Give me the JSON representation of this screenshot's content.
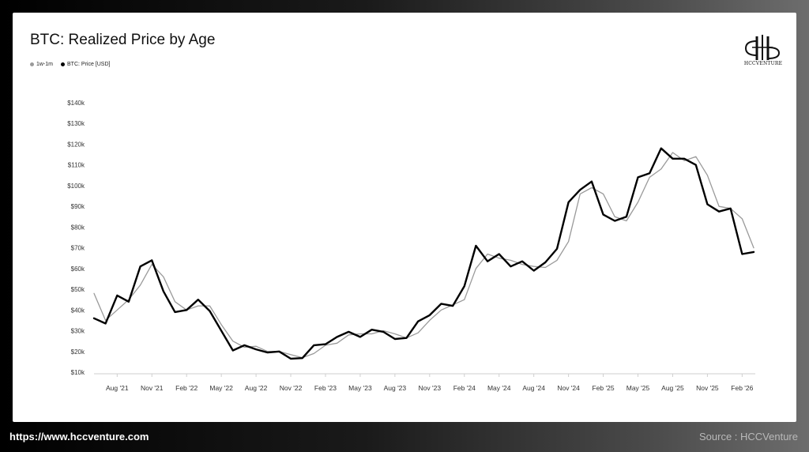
{
  "footer": {
    "url": "https://www.hccventure.com",
    "source": "Source : HCCVenture"
  },
  "logo": {
    "text": "HCCVENTURE"
  },
  "chart_data": {
    "type": "line",
    "title": "BTC: Realized Price by Age",
    "xlabel": "",
    "ylabel": "",
    "ylim": [
      10000,
      140000
    ],
    "grid": false,
    "legend_position": "top-left",
    "y_ticks": [
      {
        "value": 10000,
        "label": "$10k"
      },
      {
        "value": 20000,
        "label": "$20k"
      },
      {
        "value": 30000,
        "label": "$30k"
      },
      {
        "value": 40000,
        "label": "$40k"
      },
      {
        "value": 50000,
        "label": "$50k"
      },
      {
        "value": 60000,
        "label": "$60k"
      },
      {
        "value": 70000,
        "label": "$70k"
      },
      {
        "value": 80000,
        "label": "$80k"
      },
      {
        "value": 90000,
        "label": "$90k"
      },
      {
        "value": 100000,
        "label": "$100k"
      },
      {
        "value": 110000,
        "label": "$110k"
      },
      {
        "value": 120000,
        "label": "$120k"
      },
      {
        "value": 130000,
        "label": "$130k"
      },
      {
        "value": 140000,
        "label": "$140k"
      }
    ],
    "x_ticks": [
      {
        "date": "2021-08",
        "label": "Aug '21"
      },
      {
        "date": "2021-11",
        "label": "Nov '21"
      },
      {
        "date": "2022-02",
        "label": "Feb '22"
      },
      {
        "date": "2022-05",
        "label": "May '22"
      },
      {
        "date": "2022-08",
        "label": "Aug '22"
      },
      {
        "date": "2022-11",
        "label": "Nov '22"
      },
      {
        "date": "2023-02",
        "label": "Feb '23"
      },
      {
        "date": "2023-05",
        "label": "May '23"
      },
      {
        "date": "2023-08",
        "label": "Aug '23"
      },
      {
        "date": "2023-11",
        "label": "Nov '23"
      },
      {
        "date": "2024-02",
        "label": "Feb '24"
      },
      {
        "date": "2024-05",
        "label": "May '24"
      },
      {
        "date": "2024-08",
        "label": "Aug '24"
      },
      {
        "date": "2024-11",
        "label": "Nov '24"
      },
      {
        "date": "2025-02",
        "label": "Feb '25"
      },
      {
        "date": "2025-05",
        "label": "May '25"
      },
      {
        "date": "2025-08",
        "label": "Aug '25"
      },
      {
        "date": "2025-11",
        "label": "Nov '25"
      },
      {
        "date": "2026-02",
        "label": "Feb '26"
      }
    ],
    "x_range": [
      "2021-06",
      "2026-03"
    ],
    "series": [
      {
        "name": "BTC: Price [USD]",
        "color": "#000000",
        "x": [
          "2021-06",
          "2021-07",
          "2021-08",
          "2021-09",
          "2021-10",
          "2021-11",
          "2021-12",
          "2022-01",
          "2022-02",
          "2022-03",
          "2022-04",
          "2022-05",
          "2022-06",
          "2022-07",
          "2022-08",
          "2022-09",
          "2022-10",
          "2022-11",
          "2022-12",
          "2023-01",
          "2023-02",
          "2023-03",
          "2023-04",
          "2023-05",
          "2023-06",
          "2023-07",
          "2023-08",
          "2023-09",
          "2023-10",
          "2023-11",
          "2023-12",
          "2024-01",
          "2024-02",
          "2024-03",
          "2024-04",
          "2024-05",
          "2024-06",
          "2024-07",
          "2024-08",
          "2024-09",
          "2024-10",
          "2024-11",
          "2024-12",
          "2025-01",
          "2025-02",
          "2025-03",
          "2025-04",
          "2025-05",
          "2025-06",
          "2025-07",
          "2025-08",
          "2025-09",
          "2025-10",
          "2025-11",
          "2025-12",
          "2026-01",
          "2026-02",
          "2026-03"
        ],
        "values": [
          36000,
          33500,
          47000,
          44000,
          61000,
          64000,
          49000,
          39000,
          40000,
          45000,
          39500,
          30000,
          20500,
          23000,
          21000,
          19500,
          20000,
          16500,
          16800,
          23000,
          23500,
          27000,
          29500,
          27000,
          30500,
          29500,
          26000,
          26500,
          34500,
          37500,
          43000,
          42000,
          51500,
          71000,
          63500,
          67000,
          61000,
          63500,
          59000,
          63000,
          69500,
          92000,
          98000,
          102000,
          86000,
          83000,
          85000,
          104000,
          106000,
          118000,
          113000,
          113000,
          110000,
          91000,
          87500,
          89000,
          67000,
          68000
        ]
      },
      {
        "name": "1w-1m",
        "color": "#9a9a9a",
        "x": [
          "2021-06",
          "2021-07",
          "2021-08",
          "2021-09",
          "2021-10",
          "2021-11",
          "2021-12",
          "2022-01",
          "2022-02",
          "2022-03",
          "2022-04",
          "2022-05",
          "2022-06",
          "2022-07",
          "2022-08",
          "2022-09",
          "2022-10",
          "2022-11",
          "2022-12",
          "2023-01",
          "2023-02",
          "2023-03",
          "2023-04",
          "2023-05",
          "2023-06",
          "2023-07",
          "2023-08",
          "2023-09",
          "2023-10",
          "2023-11",
          "2023-12",
          "2024-01",
          "2024-02",
          "2024-03",
          "2024-04",
          "2024-05",
          "2024-06",
          "2024-07",
          "2024-08",
          "2024-09",
          "2024-10",
          "2024-11",
          "2024-12",
          "2025-01",
          "2025-02",
          "2025-03",
          "2025-04",
          "2025-05",
          "2025-06",
          "2025-07",
          "2025-08",
          "2025-09",
          "2025-10",
          "2025-11",
          "2025-12",
          "2026-01",
          "2026-02",
          "2026-03"
        ],
        "values": [
          48000,
          35000,
          40000,
          45000,
          52000,
          62000,
          56000,
          44000,
          40000,
          42000,
          42000,
          33000,
          25000,
          22000,
          22500,
          20000,
          20000,
          18500,
          17000,
          19000,
          23000,
          24000,
          28000,
          28500,
          28500,
          30000,
          28500,
          26500,
          29000,
          35000,
          40000,
          42500,
          45000,
          60000,
          67000,
          65000,
          64000,
          62000,
          61000,
          60500,
          64000,
          73000,
          96000,
          99000,
          96000,
          85000,
          83000,
          92000,
          104000,
          108000,
          116000,
          112000,
          114000,
          105000,
          90000,
          89000,
          84000,
          70000
        ]
      }
    ]
  }
}
